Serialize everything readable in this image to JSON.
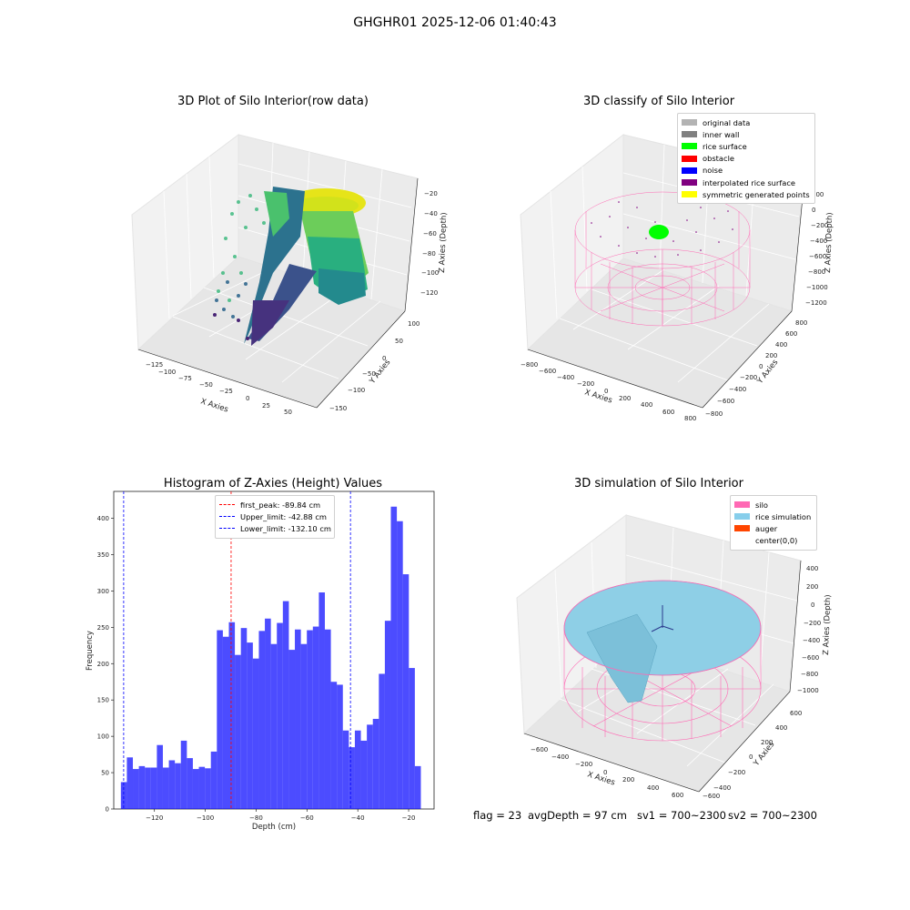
{
  "suptitle": "GHGHR01 2025-12-06 01:40:43",
  "panels": {
    "raw": {
      "title": "3D Plot of Silo Interior(row data)",
      "xlabel": "X Axies",
      "ylabel": "Y Axies",
      "zlabel": "Z Axies (Depth)",
      "xticks": [
        "−125",
        "−100",
        "−75",
        "−50",
        "−25",
        "0",
        "25",
        "50"
      ],
      "yticks": [
        "100",
        "50",
        "0",
        "−50",
        "−100",
        "−150"
      ],
      "zticks": [
        "−20",
        "−40",
        "−60",
        "−80",
        "−100",
        "−120"
      ]
    },
    "classify": {
      "title": "3D classify of Silo Interior",
      "xlabel": "X Axies",
      "ylabel": "Y Axies",
      "zlabel": "Z Axies (Depth)",
      "xticks": [
        "−800",
        "−600",
        "−400",
        "−200",
        "0",
        "200",
        "400",
        "600",
        "800"
      ],
      "yticks": [
        "800",
        "600",
        "400",
        "200",
        "0",
        "−200",
        "−400",
        "−600",
        "−800"
      ],
      "zticks": [
        "200",
        "0",
        "−200",
        "−400",
        "−600",
        "−800",
        "−1000",
        "−1200"
      ],
      "legend": [
        {
          "label": "original data",
          "color": "#b3b3b3"
        },
        {
          "label": "inner wall",
          "color": "#808080"
        },
        {
          "label": "rice surface",
          "color": "#00ff00"
        },
        {
          "label": "obstacle",
          "color": "#ff0000"
        },
        {
          "label": "noise",
          "color": "#0000ff"
        },
        {
          "label": "interpolated rice surface",
          "color": "#800080"
        },
        {
          "label": "symmetric generated points",
          "color": "#ffff00"
        }
      ]
    },
    "simulation": {
      "title": "3D simulation of Silo Interior",
      "xlabel": "X Axies",
      "ylabel": "Y Axies",
      "zlabel": "Z Axies (Depth)",
      "xticks": [
        "−600",
        "−400",
        "−200",
        "0",
        "200",
        "400",
        "600"
      ],
      "yticks": [
        "600",
        "400",
        "200",
        "0",
        "−200",
        "−400",
        "−600"
      ],
      "zticks": [
        "400",
        "200",
        "0",
        "−200",
        "−400",
        "−600",
        "−800",
        "−1000"
      ],
      "legend": [
        {
          "label": "silo",
          "color": "#ff69b4"
        },
        {
          "label": "rice simulation",
          "color": "#87ceeb"
        },
        {
          "label": "auger",
          "color": "#ff4500"
        },
        {
          "label": "center(0,0)",
          "color": "#ffffff"
        }
      ]
    }
  },
  "footer": {
    "flag": "flag = 23",
    "avg": "avgDepth = 97 cm",
    "sv1": "sv1 = 700~2300",
    "sv2": "sv2 = 700~2300"
  },
  "chart_data": {
    "type": "bar",
    "title": "Histogram of Z-Axies (Height) Values",
    "xlabel": "Depth (cm)",
    "ylabel": "Frequency",
    "xlim": [
      -136,
      -10
    ],
    "ylim": [
      0,
      437
    ],
    "bar_color": "#0000ff",
    "bin_start": -133.2,
    "bin_width": 2.36,
    "values": [
      37,
      71,
      55,
      59,
      57,
      57,
      88,
      57,
      67,
      63,
      94,
      70,
      55,
      58,
      56,
      79,
      246,
      237,
      257,
      212,
      249,
      229,
      207,
      245,
      262,
      227,
      256,
      286,
      219,
      247,
      227,
      246,
      251,
      298,
      247,
      175,
      171,
      108,
      85,
      108,
      94,
      116,
      124,
      186,
      259,
      416,
      396,
      323,
      194,
      59
    ],
    "xticks": [
      -120,
      -100,
      -80,
      -60,
      -40,
      -20
    ],
    "yticks": [
      0,
      50,
      100,
      150,
      200,
      250,
      300,
      350,
      400
    ],
    "vlines": [
      {
        "label": "first_peak: -89.84 cm",
        "x": -89.84,
        "color": "#ff0000"
      },
      {
        "label": "Upper_limit: -42.88 cm",
        "x": -42.88,
        "color": "#0000ff"
      },
      {
        "label": "Lower_limit: -132.10 cm",
        "x": -132.1,
        "color": "#0000ff"
      }
    ]
  }
}
